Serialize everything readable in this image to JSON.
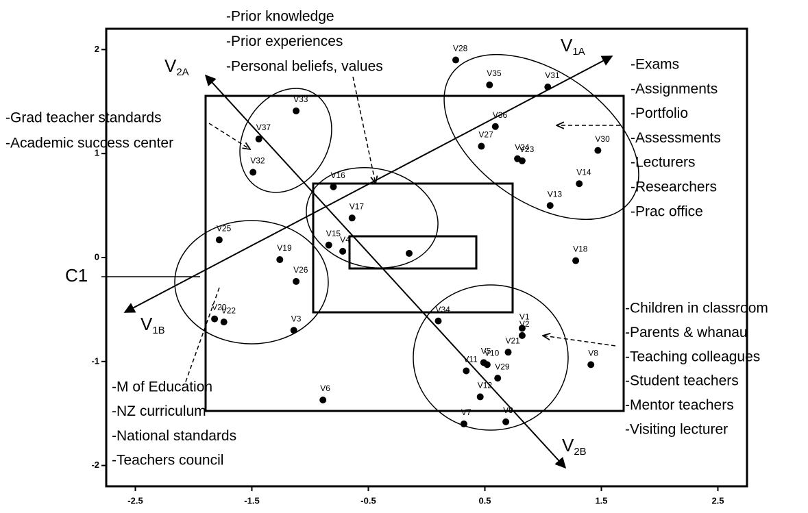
{
  "chart_data": {
    "type": "scatter",
    "xlim": [
      -2.75,
      2.75
    ],
    "ylim": [
      -2.2,
      2.2
    ],
    "xticks": [
      -2.5,
      -1.5,
      -0.5,
      0.5,
      1.5,
      2.5
    ],
    "yticks": [
      2,
      1,
      0,
      -1,
      -2
    ],
    "color": "#000000",
    "points": [
      {
        "name": "V28",
        "x": 0.25,
        "y": 1.9
      },
      {
        "name": "V35",
        "x": 0.54,
        "y": 1.66
      },
      {
        "name": "V31",
        "x": 1.04,
        "y": 1.64
      },
      {
        "name": "V36",
        "x": 0.59,
        "y": 1.26
      },
      {
        "name": "V27",
        "x": 0.47,
        "y": 1.07
      },
      {
        "name": "V23",
        "x": 0.82,
        "y": 0.93
      },
      {
        "name": "V24",
        "x": 0.78,
        "y": 0.95
      },
      {
        "name": "V30",
        "x": 1.47,
        "y": 1.03
      },
      {
        "name": "V14",
        "x": 1.31,
        "y": 0.71
      },
      {
        "name": "V13",
        "x": 1.06,
        "y": 0.5
      },
      {
        "name": "V18",
        "x": 1.28,
        "y": -0.03
      },
      {
        "name": "V33",
        "x": -1.12,
        "y": 1.41
      },
      {
        "name": "V37",
        "x": -1.44,
        "y": 1.14
      },
      {
        "name": "V32",
        "x": -1.49,
        "y": 0.82
      },
      {
        "name": "V16",
        "x": -0.8,
        "y": 0.68
      },
      {
        "name": "V17",
        "x": -0.64,
        "y": 0.38
      },
      {
        "name": "V15",
        "x": -0.84,
        "y": 0.12
      },
      {
        "name": "V4",
        "x": -0.72,
        "y": 0.06
      },
      {
        "name": null,
        "x": -0.15,
        "y": 0.04
      },
      {
        "name": "V25",
        "x": -1.78,
        "y": 0.17
      },
      {
        "name": "V19",
        "x": -1.26,
        "y": -0.02
      },
      {
        "name": "V26",
        "x": -1.12,
        "y": -0.23
      },
      {
        "name": "V20",
        "x": -1.82,
        "y": -0.59
      },
      {
        "name": "V22",
        "x": -1.74,
        "y": -0.62
      },
      {
        "name": "V3",
        "x": -1.14,
        "y": -0.7
      },
      {
        "name": "V6",
        "x": -0.89,
        "y": -1.37
      },
      {
        "name": "V34",
        "x": 0.1,
        "y": -0.61
      },
      {
        "name": "V1",
        "x": 0.82,
        "y": -0.68
      },
      {
        "name": "V2",
        "x": 0.82,
        "y": -0.75
      },
      {
        "name": "V21",
        "x": 0.7,
        "y": -0.91
      },
      {
        "name": "V5",
        "x": 0.49,
        "y": -1.01
      },
      {
        "name": "V11",
        "x": 0.34,
        "y": -1.09
      },
      {
        "name": "V10",
        "x": 0.52,
        "y": -1.03
      },
      {
        "name": "V29",
        "x": 0.61,
        "y": -1.16
      },
      {
        "name": "V12",
        "x": 0.46,
        "y": -1.34
      },
      {
        "name": "V7",
        "x": 0.32,
        "y": -1.6
      },
      {
        "name": "V9",
        "x": 0.68,
        "y": -1.58
      },
      {
        "name": "V8",
        "x": 1.41,
        "y": -1.03
      }
    ],
    "vectors": [
      {
        "main": "V",
        "sub": "1A"
      },
      {
        "main": "V",
        "sub": "2A"
      },
      {
        "main": "V",
        "sub": "1B"
      },
      {
        "main": "V",
        "sub": "2B"
      }
    ],
    "centre_label": "C1",
    "annotations": {
      "top": [
        "-Prior knowledge",
        "-Prior experiences",
        "-Personal beliefs, values"
      ],
      "right_top": [
        "-Exams",
        "-Assignments",
        "-Portfolio",
        "-Assessments",
        "-Lecturers",
        "-Researchers",
        "-Prac office"
      ],
      "left": [
        "-Grad teacher standards",
        "-Academic success center"
      ],
      "right_bottom": [
        "-Children in classroom",
        "-Parents & whanau",
        "-Teaching colleagues",
        "-Student teachers",
        "-Mentor teachers",
        "-Visiting lecturer"
      ],
      "bottom_left": [
        "-M of Education",
        "-NZ curriculum",
        "-National standards",
        "-Teachers council"
      ]
    }
  }
}
